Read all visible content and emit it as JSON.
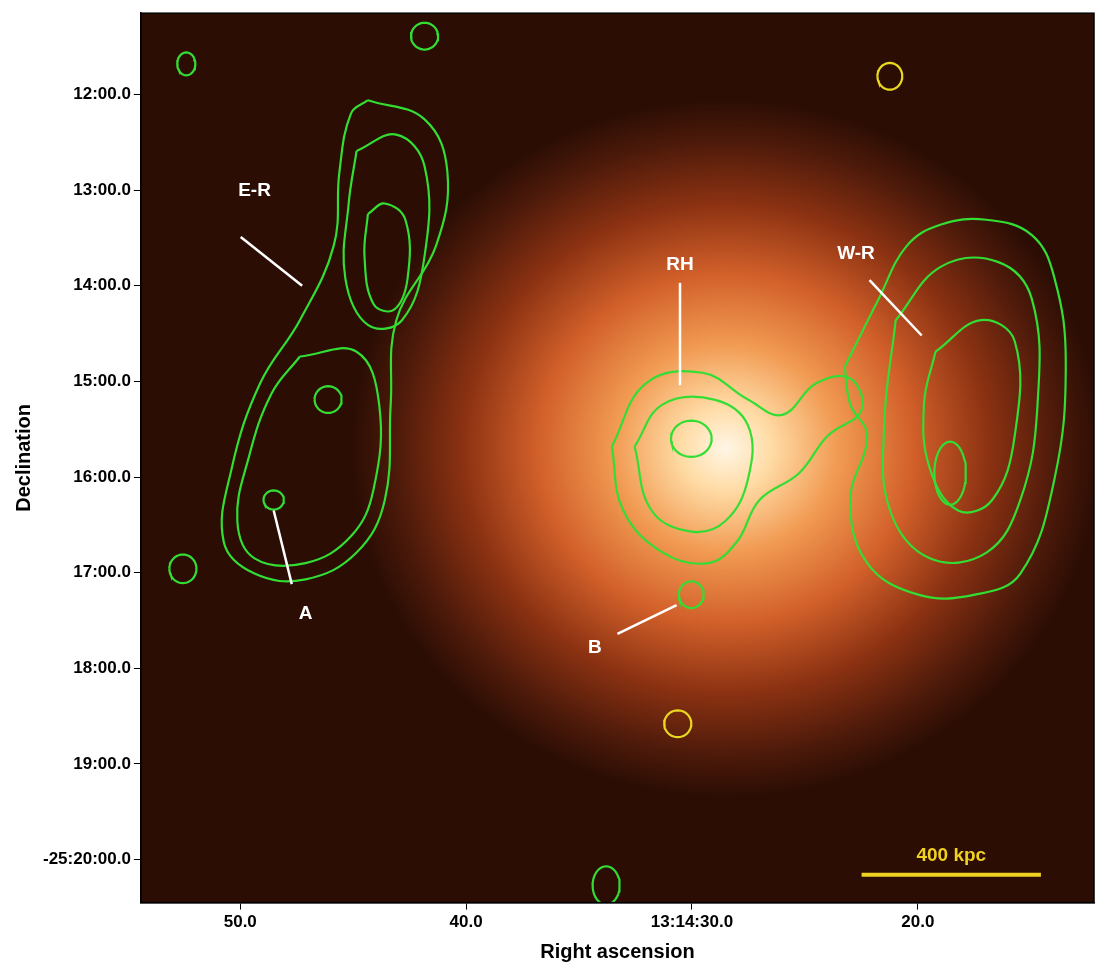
{
  "chart_data": {
    "type": "image",
    "xlabel": "Right ascension",
    "ylabel": "Declination",
    "xlim": [
      54.4,
      12.2
    ],
    "xticks": [
      {
        "value": 50,
        "label": "50.0"
      },
      {
        "value": 40,
        "label": "40.0"
      },
      {
        "value": 30,
        "label": "13:14:30.0"
      },
      {
        "value": 20,
        "label": "20.0"
      }
    ],
    "ylim": [
      20.45,
      11.15
    ],
    "yticks": [
      {
        "value": 12,
        "label": "12:00.0"
      },
      {
        "value": 13,
        "label": "13:00.0"
      },
      {
        "value": 14,
        "label": "14:00.0"
      },
      {
        "value": 15,
        "label": "15:00.0"
      },
      {
        "value": 16,
        "label": "16:00.0"
      },
      {
        "value": 17,
        "label": "17:00.0"
      },
      {
        "value": 18,
        "label": "18:00.0"
      },
      {
        "value": 19,
        "label": "19:00.0"
      },
      {
        "value": 20,
        "label": "-25:20:00.0"
      }
    ],
    "grid": false,
    "xray": {
      "x": 28.5,
      "y": 15.7,
      "rx": 16.6,
      "ry": 3.65
    },
    "contours": [
      {
        "color": "#33dd33",
        "x": [
          44.35,
          41.84,
          40.83,
          41.33,
          43.09,
          43.34,
          43.6,
          44.85,
          47.11,
          49.37,
          50.73,
          50.38,
          49.12,
          47.36,
          45.86,
          45.61,
          45.1
        ],
        "y": [
          12.06,
          12.26,
          12.81,
          13.58,
          14.36,
          15.24,
          16.24,
          16.79,
          17.07,
          17.01,
          16.68,
          15.91,
          15.02,
          14.36,
          13.58,
          12.81,
          12.2
        ]
      },
      {
        "color": "#33dd33",
        "x": [
          44.85,
          43.09,
          41.84,
          41.84,
          42.84,
          44.35,
          45.35,
          45.2
        ],
        "y": [
          12.59,
          12.42,
          12.75,
          13.69,
          14.36,
          14.41,
          13.92,
          13.14
        ]
      },
      {
        "color": "#33dd33",
        "x": [
          44.35,
          43.6,
          42.69,
          42.59,
          43.19,
          44.1,
          44.5
        ],
        "y": [
          13.25,
          13.14,
          13.31,
          13.92,
          14.25,
          14.19,
          13.69
        ]
      },
      {
        "color": "#33dd33",
        "x": [
          47.36,
          44.85,
          43.85,
          44.1,
          45.1,
          47.11,
          49.37,
          50.13,
          49.63,
          48.62
        ],
        "y": [
          14.74,
          14.69,
          15.24,
          16.13,
          16.62,
          16.9,
          16.85,
          16.46,
          15.8,
          15.13
        ]
      },
      {
        "color": "#33dd33",
        "x": [
          33.55,
          32.04,
          29.53,
          27.52,
          26.01,
          24.5,
          22.99,
          22.49,
          24.0,
          25.26,
          27.01,
          28.02,
          29.28,
          31.29,
          33.04
        ],
        "y": [
          15.68,
          15.02,
          14.91,
          15.19,
          15.35,
          15.02,
          14.97,
          15.3,
          15.57,
          15.96,
          16.24,
          16.68,
          16.9,
          16.79,
          16.35
        ]
      },
      {
        "color": "#33dd33",
        "x": [
          32.54,
          31.29,
          29.02,
          27.52,
          27.52,
          28.52,
          30.03,
          31.79
        ],
        "y": [
          15.68,
          15.24,
          15.19,
          15.46,
          16.02,
          16.46,
          16.57,
          16.35
        ]
      },
      {
        "color": "#33dd33",
        "x": [
          23.24,
          21.74,
          20.48,
          18.97,
          16.96,
          14.95,
          13.95,
          13.45,
          13.95,
          15.46,
          17.47,
          19.98,
          22.24,
          22.99,
          22.24,
          22.99
        ],
        "y": [
          14.85,
          14.14,
          13.58,
          13.36,
          13.31,
          13.47,
          13.92,
          14.8,
          16.02,
          17.01,
          17.23,
          17.23,
          16.9,
          16.24,
          15.57,
          15.24
        ]
      },
      {
        "color": "#33dd33",
        "x": [
          20.98,
          18.97,
          16.46,
          14.95,
          14.7,
          15.46,
          16.96,
          19.47,
          21.23,
          21.49
        ],
        "y": [
          14.36,
          13.8,
          13.75,
          14.14,
          15.24,
          16.24,
          16.79,
          16.85,
          16.35,
          15.46
        ]
      },
      {
        "color": "#33dd33",
        "x": [
          19.22,
          17.21,
          15.71,
          15.71,
          16.71,
          18.22,
          19.47,
          19.73
        ],
        "y": [
          14.69,
          14.36,
          14.58,
          15.57,
          16.24,
          16.35,
          15.91,
          15.24
        ]
      }
    ],
    "ellipses": [
      {
        "color": "#33dd33",
        "x": 46.11,
        "y": 15.19,
        "rx": 0.6,
        "ry": 0.14
      },
      {
        "color": "#33dd33",
        "x": 48.52,
        "y": 16.24,
        "rx": 0.45,
        "ry": 0.1
      },
      {
        "color": "#33dd33",
        "x": 30.03,
        "y": 15.6,
        "rx": 0.9,
        "ry": 0.19
      },
      {
        "color": "#33dd33",
        "x": 18.57,
        "y": 15.96,
        "rx": 0.7,
        "ry": 0.33
      },
      {
        "color": "#33dd33",
        "x": 52.39,
        "y": 11.68,
        "rx": 0.4,
        "ry": 0.12
      },
      {
        "color": "#33dd33",
        "x": 41.84,
        "y": 11.39,
        "rx": 0.6,
        "ry": 0.14
      },
      {
        "color": "#33dd33",
        "x": 52.54,
        "y": 16.96,
        "rx": 0.6,
        "ry": 0.15
      },
      {
        "color": "#33dd33",
        "x": 30.03,
        "y": 17.23,
        "rx": 0.55,
        "ry": 0.14
      },
      {
        "color": "#33dd33",
        "x": 33.8,
        "y": 20.27,
        "rx": 0.6,
        "ry": 0.2
      },
      {
        "color": "#e8d820",
        "x": 21.24,
        "y": 11.81,
        "rx": 0.55,
        "ry": 0.14
      },
      {
        "color": "#e8d820",
        "x": 30.63,
        "y": 18.58,
        "rx": 0.6,
        "ry": 0.14
      }
    ],
    "annotations": [
      {
        "text": "E-R",
        "x": 49.37,
        "y": 13.01,
        "line": [
          [
            49.98,
            13.49
          ],
          [
            47.26,
            14.0
          ]
        ]
      },
      {
        "text": "RH",
        "x": 30.53,
        "y": 13.78,
        "line": [
          [
            30.53,
            13.97
          ],
          [
            30.53,
            15.04
          ]
        ]
      },
      {
        "text": "W-R",
        "x": 22.74,
        "y": 13.67,
        "line": [
          [
            22.14,
            13.94
          ],
          [
            19.83,
            14.52
          ]
        ]
      },
      {
        "text": "A",
        "x": 47.11,
        "y": 17.43,
        "line": [
          [
            47.72,
            17.12
          ],
          [
            48.52,
            16.35
          ]
        ]
      },
      {
        "text": "B",
        "x": 34.3,
        "y": 17.79,
        "line": [
          [
            33.3,
            17.64
          ],
          [
            30.68,
            17.34
          ]
        ]
      }
    ],
    "scale_bar": {
      "label": "400 kpc",
      "x": [
        22.49,
        14.55
      ],
      "y": 20.16
    }
  }
}
